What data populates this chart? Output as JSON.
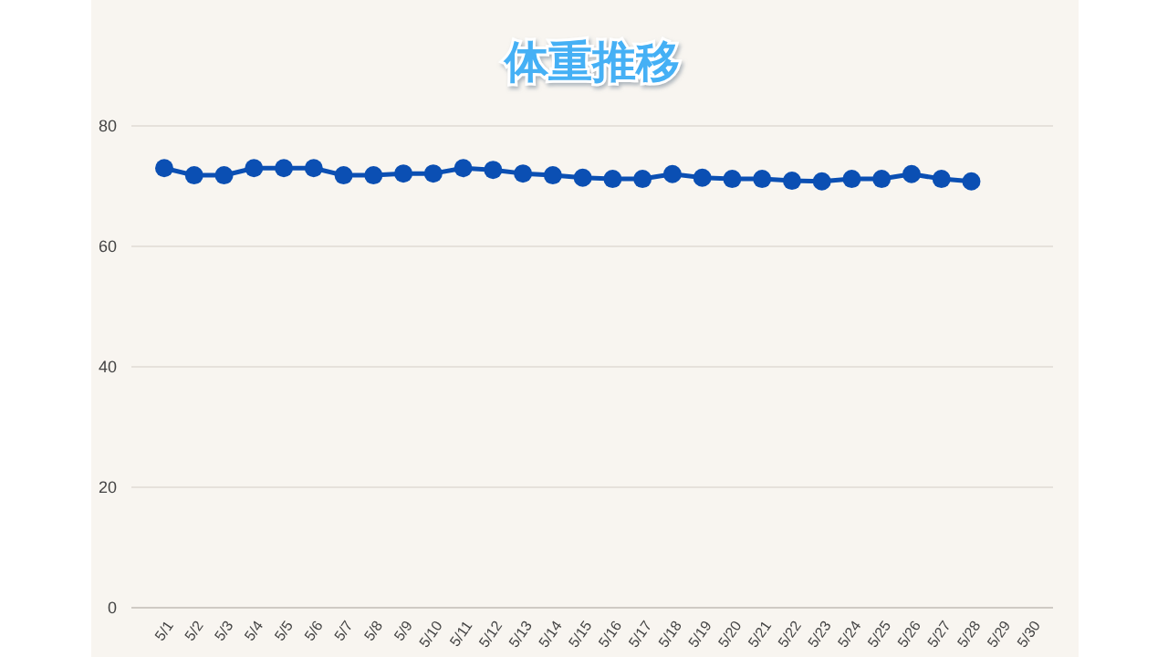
{
  "chart_data": {
    "type": "line",
    "title": "体重推移",
    "categories": [
      "5/1",
      "5/2",
      "5/3",
      "5/4",
      "5/5",
      "5/6",
      "5/7",
      "5/8",
      "5/9",
      "5/10",
      "5/11",
      "5/12",
      "5/13",
      "5/14",
      "5/15",
      "5/16",
      "5/17",
      "5/18",
      "5/19",
      "5/20",
      "5/21",
      "5/22",
      "5/23",
      "5/24",
      "5/25",
      "5/26",
      "5/27",
      "5/28",
      "5/29",
      "5/30"
    ],
    "series": [
      {
        "color": "#0b4fb3",
        "values": [
          73.0,
          71.8,
          71.8,
          73.0,
          73.0,
          73.0,
          71.8,
          71.8,
          72.1,
          72.1,
          73.0,
          72.7,
          72.1,
          71.8,
          71.4,
          71.2,
          71.2,
          72.0,
          71.4,
          71.2,
          71.2,
          70.9,
          70.8,
          71.2,
          71.2,
          72.0,
          71.2,
          70.8,
          null,
          null
        ]
      }
    ],
    "ylim": [
      0,
      80
    ],
    "yticks": [
      0,
      20,
      40,
      60,
      80
    ],
    "grid": "y",
    "marker": "circle",
    "line_style": "solid"
  }
}
